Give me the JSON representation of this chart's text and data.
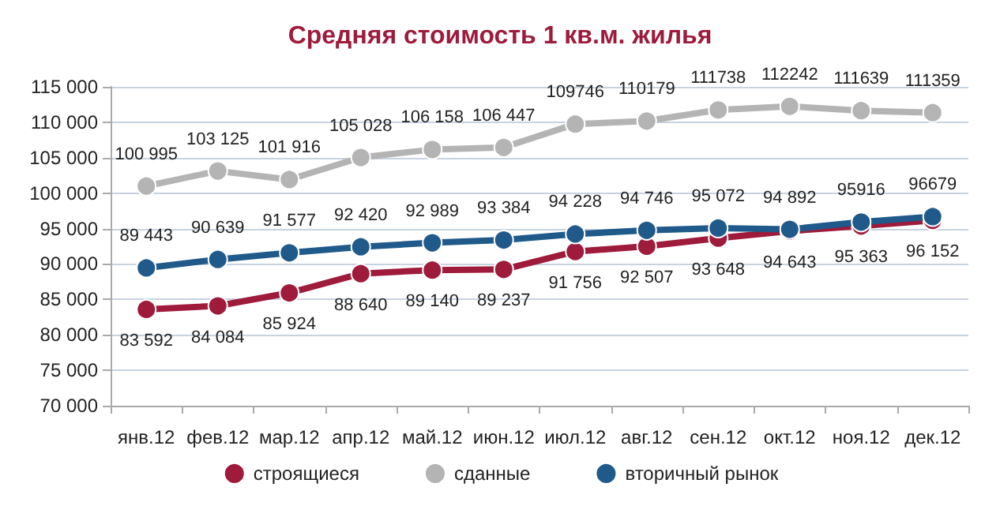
{
  "chart_data": {
    "type": "line",
    "title": "Средняя стоимость 1 кв.м. жилья",
    "categories": [
      "янв.12",
      "фев.12",
      "мар.12",
      "апр.12",
      "май.12",
      "июн.12",
      "июл.12",
      "авг.12",
      "сен.12",
      "окт.12",
      "ноя.12",
      "дек.12"
    ],
    "series": [
      {
        "name": "строящиеся",
        "color": "#9e1b3c",
        "values": [
          83592,
          84084,
          85924,
          88640,
          89140,
          89237,
          91756,
          92507,
          93648,
          94643,
          95363,
          96152
        ],
        "value_labels": [
          "83 592",
          "84 084",
          "85 924",
          "88 640",
          "89 140",
          "89 237",
          "91 756",
          "92 507",
          "93 648",
          "94 643",
          "95 363",
          "96 152"
        ]
      },
      {
        "name": "сданные",
        "color": "#b4b4b4",
        "values": [
          100995,
          103125,
          101916,
          105028,
          106158,
          106447,
          109746,
          110179,
          111738,
          112242,
          111639,
          111359
        ],
        "value_labels": [
          "100 995",
          "103 125",
          "101 916",
          "105 028",
          "106 158",
          "106 447",
          "109746",
          "110179",
          "111738",
          "112242",
          "111639",
          "111359"
        ]
      },
      {
        "name": "вторичный рынок",
        "color": "#1f5a8a",
        "values": [
          89443,
          90639,
          91577,
          92420,
          92989,
          93384,
          94228,
          94746,
          95072,
          94892,
          95916,
          96679
        ],
        "value_labels": [
          "89 443",
          "90 639",
          "91 577",
          "92 420",
          "92 989",
          "93 384",
          "94 228",
          "94 746",
          "95 072",
          "94 892",
          "95916",
          "96679"
        ]
      }
    ],
    "ylim": [
      70000,
      115000
    ],
    "yticks": [
      {
        "value": 70000,
        "label": "70 000"
      },
      {
        "value": 75000,
        "label": "75 000"
      },
      {
        "value": 80000,
        "label": "80 000"
      },
      {
        "value": 85000,
        "label": "85 000"
      },
      {
        "value": 90000,
        "label": "90 000"
      },
      {
        "value": 95000,
        "label": "95 000"
      },
      {
        "value": 100000,
        "label": "100 000"
      },
      {
        "value": 105000,
        "label": "105 000"
      },
      {
        "value": 110000,
        "label": "110 000"
      },
      {
        "value": 115000,
        "label": "115 000"
      }
    ],
    "grid": "y",
    "legend": "bottom",
    "marker": "circle",
    "line_style": "solid"
  }
}
